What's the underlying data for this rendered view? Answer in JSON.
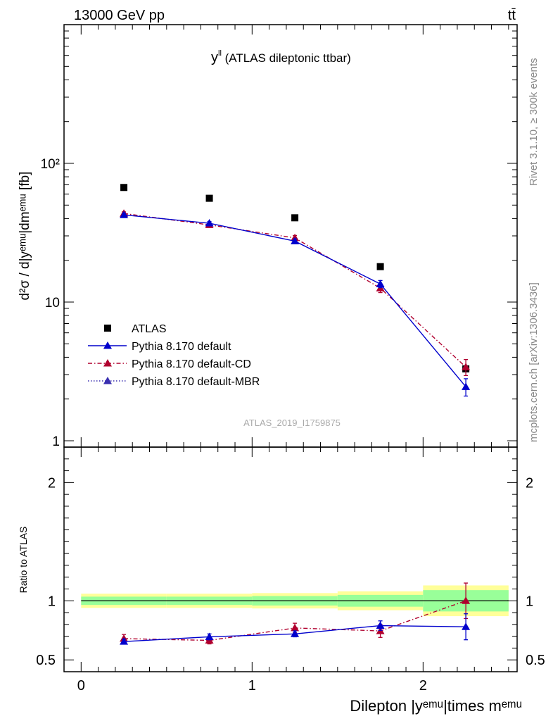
{
  "header": {
    "energy_label": "13000 GeV pp",
    "process_label": "tt̄"
  },
  "side_labels": {
    "rivet": "Rivet 3.1.10, ≥ 300k events",
    "mcplots": "mcplots.cern.ch [arXiv:1306.3436]"
  },
  "watermark": "ATLAS_2019_I1759875",
  "main_panel": {
    "title_main": "y",
    "title_sup": "ll",
    "title_rest": " (ATLAS dileptonic ttbar)",
    "ylabel": "d²σ / d|yᵉᵐᵘ|dmᵉᵐᵘ [fb]",
    "yscale": "log",
    "ylim": [
      0.9,
      1000
    ],
    "yticks": [
      {
        "value": 1,
        "label": "1"
      },
      {
        "value": 10,
        "label": "10"
      },
      {
        "value": 100,
        "label": "10²"
      }
    ]
  },
  "ratio_panel": {
    "ylabel": "Ratio to ATLAS",
    "ylim": [
      0.4,
      2.3
    ],
    "yticks": [
      {
        "value": 0.5,
        "label": "0.5"
      },
      {
        "value": 1,
        "label": "1"
      },
      {
        "value": 2,
        "label": "2"
      }
    ]
  },
  "x_axis": {
    "label": "Dilepton |yᵉᵐᵘ|times mᵉᵐᵘ",
    "xlim": [
      -0.1,
      2.55
    ],
    "ticks": [
      {
        "value": 0,
        "label": "0"
      },
      {
        "value": 1,
        "label": "1"
      },
      {
        "value": 2,
        "label": "2"
      }
    ]
  },
  "chart_data": {
    "type": "scatter",
    "legend_position": "lower-left",
    "data": {
      "name": "ATLAS",
      "x": [
        0.25,
        0.75,
        1.25,
        1.75,
        2.25
      ],
      "xerr": [
        0.25,
        0.25,
        0.25,
        0.25,
        0.25
      ],
      "y": [
        67,
        56,
        40.5,
        18,
        3.3
      ],
      "band_inner": [
        0.035,
        0.035,
        0.04,
        0.05,
        0.09
      ],
      "band_outer": [
        0.06,
        0.06,
        0.065,
        0.08,
        0.13
      ]
    },
    "series": [
      {
        "name": "Pythia 8.170 default",
        "color": "#0000cc",
        "line": "solid",
        "x": [
          0.25,
          0.75,
          1.25,
          1.75,
          2.25
        ],
        "y": [
          42.5,
          37,
          27.5,
          13.5,
          2.45
        ],
        "yerr": [
          1.2,
          1.0,
          1.0,
          0.8,
          0.35
        ],
        "ratio": [
          0.655,
          0.695,
          0.72,
          0.79,
          0.78
        ],
        "ratio_err": [
          0.02,
          0.025,
          0.025,
          0.04,
          0.11
        ]
      },
      {
        "name": "Pythia 8.170 default-CD",
        "color": "#b0002e",
        "line": "dashdot",
        "x": [
          0.25,
          0.75,
          1.25,
          1.75,
          2.25
        ],
        "y": [
          43.5,
          36,
          29,
          12.6,
          3.4
        ],
        "yerr": [
          1.2,
          1.0,
          1.2,
          0.9,
          0.45
        ],
        "ratio": [
          0.68,
          0.665,
          0.77,
          0.745,
          1.0
        ],
        "ratio_err": [
          0.035,
          0.03,
          0.04,
          0.055,
          0.15
        ]
      },
      {
        "name": "Pythia 8.170 default-MBR",
        "color": "#3a2fb0",
        "line": "dotted",
        "x": [],
        "y": []
      }
    ]
  }
}
